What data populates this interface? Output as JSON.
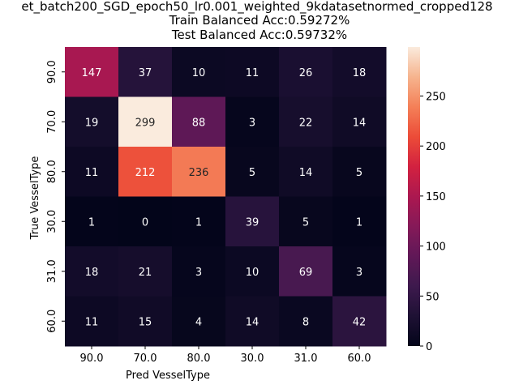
{
  "chart_data": {
    "type": "heatmap",
    "title_lines": [
      "et_batch200_SGD_epoch50_lr0.001_weighted_9kdatasetnormed_cropped128",
      "Train Balanced Acc:0.59272%",
      "Test Balanced Acc:0.59732%"
    ],
    "xlabel": "Pred VesselType",
    "ylabel": "True VesselType",
    "x_categories": [
      "90.0",
      "70.0",
      "80.0",
      "30.0",
      "31.0",
      "60.0"
    ],
    "y_categories": [
      "90.0",
      "70.0",
      "80.0",
      "30.0",
      "31.0",
      "60.0"
    ],
    "values": [
      [
        147,
        37,
        10,
        11,
        26,
        18
      ],
      [
        19,
        299,
        88,
        3,
        22,
        14
      ],
      [
        11,
        212,
        236,
        5,
        14,
        5
      ],
      [
        1,
        0,
        1,
        39,
        5,
        1
      ],
      [
        18,
        21,
        3,
        10,
        69,
        3
      ],
      [
        11,
        15,
        4,
        14,
        8,
        42
      ]
    ],
    "colorbar": {
      "min": 0,
      "max": 299,
      "ticks": [
        0,
        50,
        100,
        150,
        200,
        250
      ]
    },
    "colormap": "rocket"
  }
}
